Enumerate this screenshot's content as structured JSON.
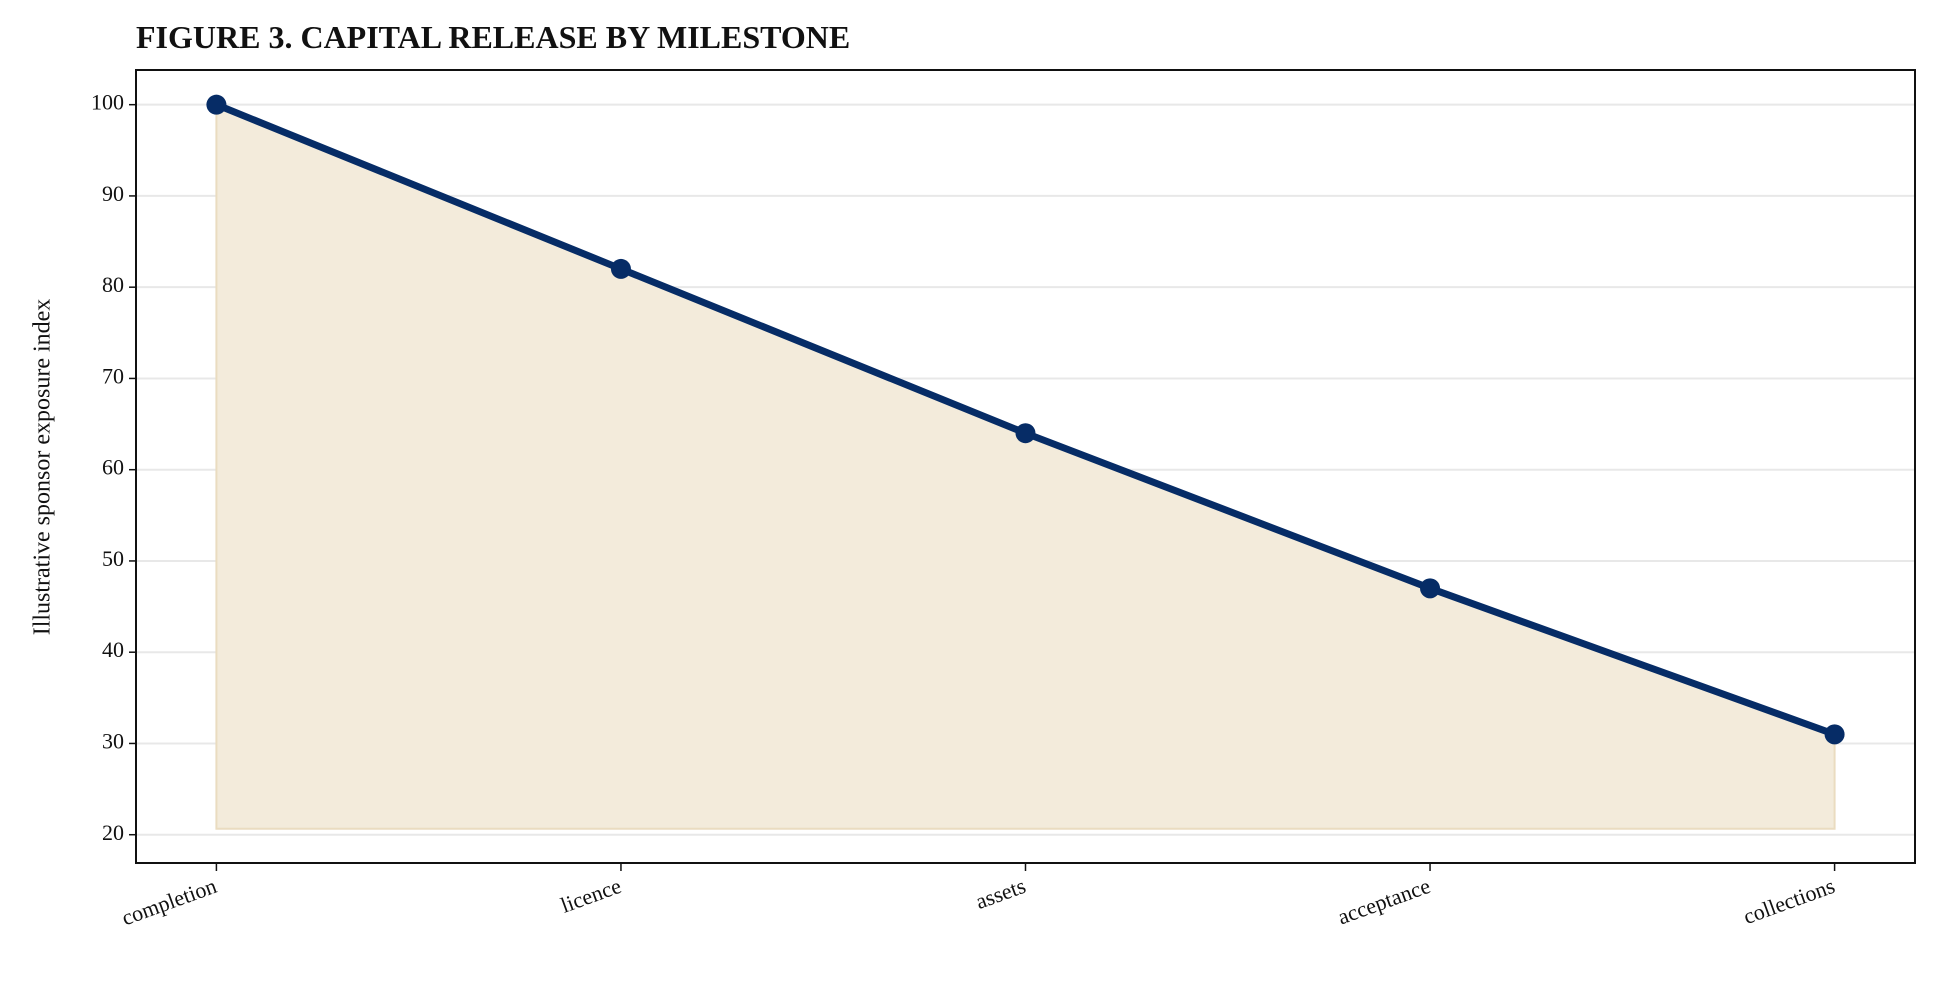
{
  "chart_data": {
    "type": "line",
    "title": "FIGURE 3. CAPITAL RELEASE BY MILESTONE",
    "y_label": "Illustrative sponsor exposure index",
    "categories": [
      "completion",
      "licence",
      "assets",
      "acceptance",
      "collections"
    ],
    "values": [
      100,
      82,
      64,
      47,
      31
    ],
    "color": "#062c66",
    "fill_color": "#f3ebdb",
    "ylim": [
      16.9,
      103.8
    ],
    "yticks": [
      20,
      30,
      40,
      50,
      60,
      70,
      80,
      90,
      100
    ],
    "grid": true
  }
}
